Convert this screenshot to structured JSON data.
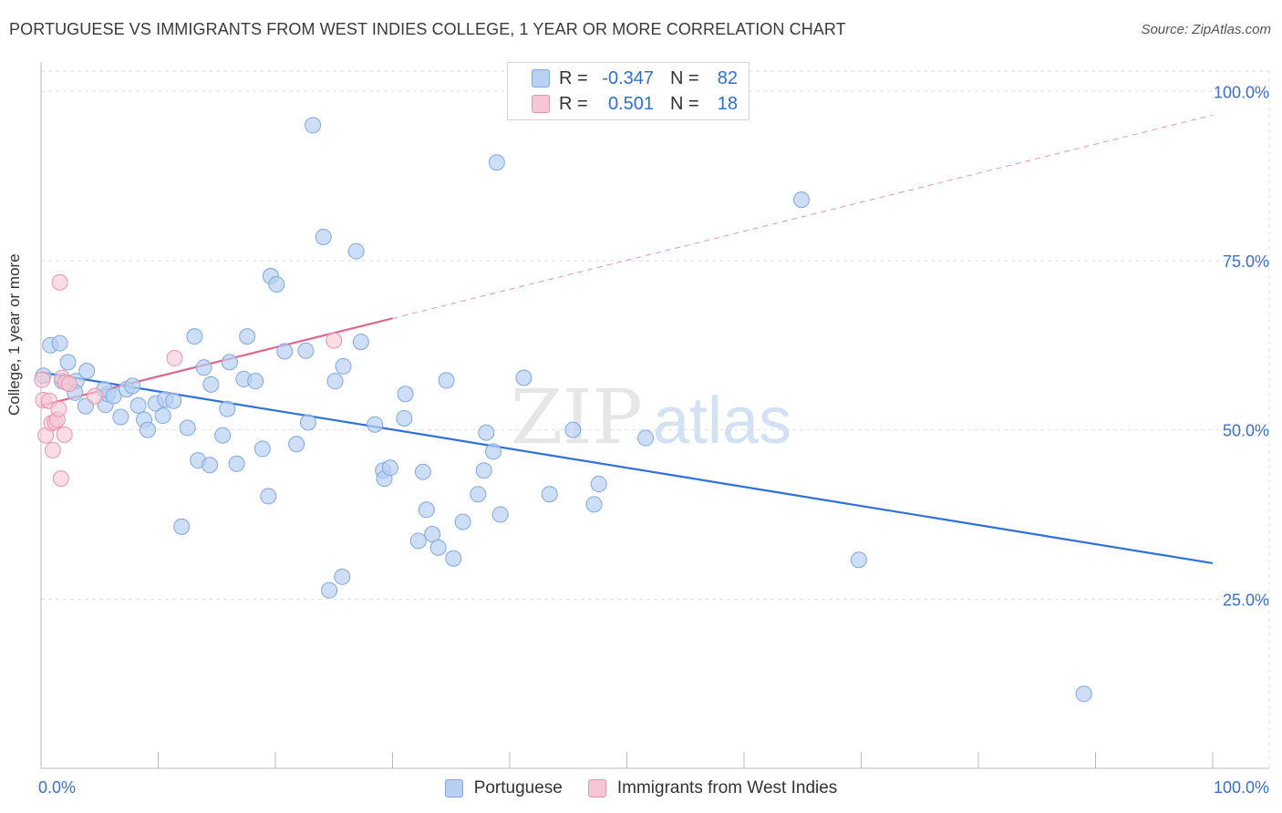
{
  "title": "PORTUGUESE VS IMMIGRANTS FROM WEST INDIES COLLEGE, 1 YEAR OR MORE CORRELATION CHART",
  "source": "Source: ZipAtlas.com",
  "watermark": {
    "zip": "ZIP",
    "atlas": "atlas"
  },
  "legend": {
    "rows": [
      {
        "r_label": "R =",
        "r_value": "-0.347",
        "n_label": "N =",
        "n_value": "82"
      },
      {
        "r_label": "R =",
        "r_value": "0.501",
        "n_label": "N =",
        "n_value": "18"
      }
    ]
  },
  "colors": {
    "blue_fill": "#b8d0f2",
    "blue_stroke": "#7fa8e0",
    "blue_line": "#2f72d6",
    "pink_fill": "#f7c6d4",
    "pink_stroke": "#ea93ad",
    "pink_line": "#e0668f",
    "tick_label": "#3d6fc8",
    "grid": "#dddddd"
  },
  "chart_data": {
    "type": "scatter",
    "title": "PORTUGUESE VS IMMIGRANTS FROM WEST INDIES COLLEGE, 1 YEAR OR MORE CORRELATION CHART",
    "xlabel": "",
    "ylabel": "College, 1 year or more",
    "xlim": [
      0,
      100
    ],
    "ylim": [
      0,
      103
    ],
    "x_tick_labels": [
      "0.0%",
      "100.0%"
    ],
    "y_ticks": [
      25,
      50,
      75,
      100
    ],
    "y_tick_labels": [
      "25.0%",
      "50.0%",
      "75.0%",
      "100.0%"
    ],
    "grid": true,
    "series": [
      {
        "name": "Portuguese",
        "r": -0.347,
        "n": 82,
        "trend": {
          "x0": 0,
          "y0": 58.5,
          "x1": 100,
          "y1": 30.3
        },
        "points": [
          [
            0.2,
            58
          ],
          [
            0.8,
            62.5
          ],
          [
            1.6,
            62.8
          ],
          [
            2.3,
            60
          ],
          [
            1.8,
            57.2
          ],
          [
            3,
            57.2
          ],
          [
            2.9,
            55.5
          ],
          [
            3.9,
            58.7
          ],
          [
            3.8,
            53.5
          ],
          [
            5.5,
            53.7
          ],
          [
            5.7,
            55.3
          ],
          [
            5.4,
            56
          ],
          [
            6.2,
            55
          ],
          [
            7.3,
            56
          ],
          [
            7.8,
            56.5
          ],
          [
            6.8,
            51.9
          ],
          [
            8.3,
            53.6
          ],
          [
            8.8,
            51.5
          ],
          [
            9.1,
            50
          ],
          [
            9.8,
            53.9
          ],
          [
            10.6,
            54.5
          ],
          [
            10.4,
            52.1
          ],
          [
            11.3,
            54.3
          ],
          [
            12.5,
            50.3
          ],
          [
            13.1,
            63.8
          ],
          [
            13.4,
            45.5
          ],
          [
            13.9,
            59.2
          ],
          [
            14.5,
            56.7
          ],
          [
            14.4,
            44.8
          ],
          [
            15.5,
            49.2
          ],
          [
            15.9,
            53.1
          ],
          [
            16.1,
            60
          ],
          [
            16.7,
            45
          ],
          [
            17.3,
            57.5
          ],
          [
            17.6,
            63.8
          ],
          [
            18.3,
            57.2
          ],
          [
            18.9,
            47.2
          ],
          [
            19.4,
            40.2
          ],
          [
            19.6,
            72.7
          ],
          [
            20.1,
            71.5
          ],
          [
            20.8,
            61.6
          ],
          [
            21.8,
            47.9
          ],
          [
            22.6,
            61.7
          ],
          [
            23.2,
            95
          ],
          [
            22.8,
            51.1
          ],
          [
            24.1,
            78.5
          ],
          [
            25.1,
            57.2
          ],
          [
            25.8,
            59.4
          ],
          [
            26.9,
            76.4
          ],
          [
            27.3,
            63
          ],
          [
            12,
            35.7
          ],
          [
            24.6,
            26.3
          ],
          [
            25.7,
            28.3
          ],
          [
            28.5,
            50.8
          ],
          [
            29.2,
            44
          ],
          [
            29.3,
            42.8
          ],
          [
            29.8,
            44.4
          ],
          [
            31,
            51.7
          ],
          [
            31.1,
            55.3
          ],
          [
            32.2,
            33.6
          ],
          [
            32.6,
            43.8
          ],
          [
            32.9,
            38.2
          ],
          [
            33.4,
            34.6
          ],
          [
            33.9,
            32.6
          ],
          [
            34.6,
            57.3
          ],
          [
            35.2,
            31
          ],
          [
            36,
            36.4
          ],
          [
            37.3,
            40.5
          ],
          [
            37.8,
            44
          ],
          [
            38,
            49.6
          ],
          [
            38.6,
            46.8
          ],
          [
            38.9,
            89.5
          ],
          [
            39.2,
            37.5
          ],
          [
            41.2,
            57.7
          ],
          [
            43.4,
            40.5
          ],
          [
            45.4,
            50
          ],
          [
            47.2,
            39
          ],
          [
            47.6,
            42
          ],
          [
            51.6,
            48.8
          ],
          [
            64.9,
            84
          ],
          [
            69.8,
            30.8
          ],
          [
            89,
            11
          ]
        ]
      },
      {
        "name": "Immigrants from West Indies",
        "r": 0.501,
        "n": 18,
        "trend": {
          "x0": 0,
          "y0": 53.6,
          "x1": 100,
          "y1": 96.5,
          "solid_until_x": 30
        },
        "points": [
          [
            0.1,
            57.4
          ],
          [
            0.2,
            54.4
          ],
          [
            0.4,
            49.2
          ],
          [
            0.7,
            54.3
          ],
          [
            0.9,
            51
          ],
          [
            1.0,
            47
          ],
          [
            1.2,
            51.2
          ],
          [
            1.4,
            51.5
          ],
          [
            1.5,
            53.1
          ],
          [
            1.6,
            71.8
          ],
          [
            1.7,
            42.8
          ],
          [
            1.8,
            57.7
          ],
          [
            2.0,
            49.3
          ],
          [
            2.1,
            57
          ],
          [
            2.4,
            56.8
          ],
          [
            4.6,
            55
          ],
          [
            11.4,
            60.6
          ],
          [
            25,
            63.2
          ]
        ]
      }
    ]
  }
}
